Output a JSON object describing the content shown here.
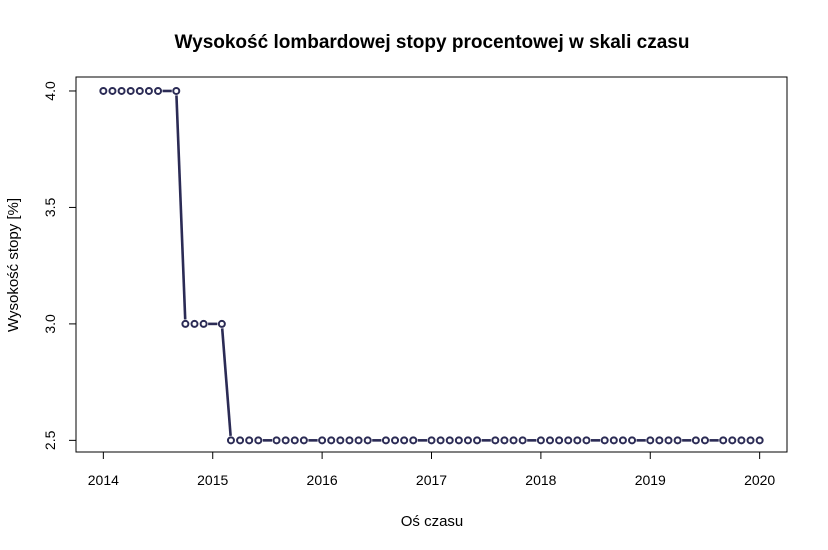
{
  "chart_data": {
    "type": "line",
    "title": "Wysokość lombardowej stopy procentowej w skali czasu",
    "xlabel": "Oś czasu",
    "ylabel": "Wysokość stopy [%]",
    "xlim": [
      2013.75,
      2020.25
    ],
    "ylim": [
      2.45,
      4.06
    ],
    "x_ticks": [
      2014,
      2015,
      2016,
      2017,
      2018,
      2019,
      2020
    ],
    "x_tick_labels": [
      "2014",
      "2015",
      "2016",
      "2017",
      "2018",
      "2019",
      "2020"
    ],
    "y_ticks": [
      2.5,
      3.0,
      3.5,
      4.0
    ],
    "y_tick_labels": [
      "2.5",
      "3.0",
      "3.5",
      "4.0"
    ],
    "grid": false,
    "legend": "none",
    "series_color": "#2b2b55",
    "series": [
      {
        "x": [
          2014.0,
          2014.0833,
          2014.1667,
          2014.25,
          2014.3333,
          2014.4167,
          2014.5,
          2014.6667,
          2014.75,
          2014.8333,
          2014.9167,
          2015.0833,
          2015.1667,
          2015.25,
          2015.3333,
          2015.4167,
          2015.5833,
          2015.6667,
          2015.75,
          2015.8333,
          2016.0,
          2016.0833,
          2016.1667,
          2016.25,
          2016.3333,
          2016.4167,
          2016.5833,
          2016.6667,
          2016.75,
          2016.8333,
          2017.0,
          2017.0833,
          2017.1667,
          2017.25,
          2017.3333,
          2017.4167,
          2017.5833,
          2017.6667,
          2017.75,
          2017.8333,
          2018.0,
          2018.0833,
          2018.1667,
          2018.25,
          2018.3333,
          2018.4167,
          2018.5833,
          2018.6667,
          2018.75,
          2018.8333,
          2019.0,
          2019.0833,
          2019.1667,
          2019.25,
          2019.4167,
          2019.5,
          2019.6667,
          2019.75,
          2019.8333,
          2019.9167,
          2020.0
        ],
        "y": [
          4.0,
          4.0,
          4.0,
          4.0,
          4.0,
          4.0,
          4.0,
          4.0,
          3.0,
          3.0,
          3.0,
          3.0,
          2.5,
          2.5,
          2.5,
          2.5,
          2.5,
          2.5,
          2.5,
          2.5,
          2.5,
          2.5,
          2.5,
          2.5,
          2.5,
          2.5,
          2.5,
          2.5,
          2.5,
          2.5,
          2.5,
          2.5,
          2.5,
          2.5,
          2.5,
          2.5,
          2.5,
          2.5,
          2.5,
          2.5,
          2.5,
          2.5,
          2.5,
          2.5,
          2.5,
          2.5,
          2.5,
          2.5,
          2.5,
          2.5,
          2.5,
          2.5,
          2.5,
          2.5,
          2.5,
          2.5,
          2.5,
          2.5,
          2.5,
          2.5,
          2.5
        ]
      }
    ]
  }
}
